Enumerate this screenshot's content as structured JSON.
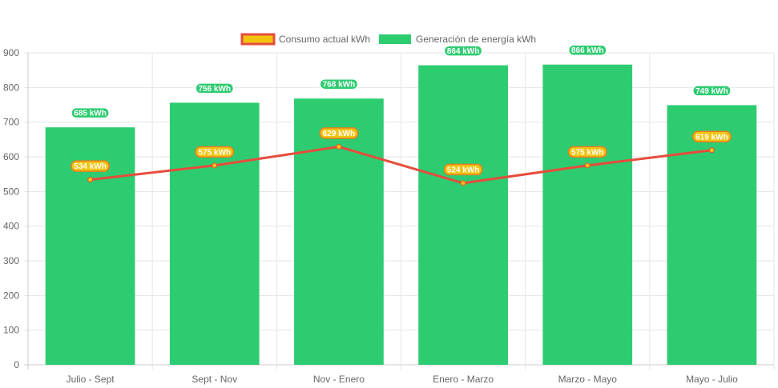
{
  "chart_data": {
    "type": "bar",
    "categories": [
      "Julio - Sept",
      "Sept - Nov",
      "Nov - Enero",
      "Enero - Marzo",
      "Marzo - Mayo",
      "Mayo - Julio"
    ],
    "series": [
      {
        "name": "Consumo actual kWh",
        "type": "line",
        "values": [
          534,
          575,
          629,
          524,
          575,
          619
        ],
        "labels": [
          "534 kWh",
          "575 kWh",
          "629 kWh",
          "524 kWh",
          "575 kWh",
          "619 kWh"
        ],
        "color": "#e74c3c",
        "fill": "#f1c40f"
      },
      {
        "name": "Generación de energía kWh",
        "type": "bar",
        "values": [
          685,
          756,
          768,
          864,
          866,
          749
        ],
        "labels": [
          "685 kWh",
          "756 kWh",
          "768 kWh",
          "864 kWh",
          "866 kWh",
          "749 kWh"
        ],
        "color": "#2ecc71"
      }
    ],
    "ylim": [
      0,
      900
    ],
    "yticks": [
      "0",
      "100",
      "200",
      "300",
      "400",
      "500",
      "600",
      "700",
      "800",
      "900"
    ],
    "grid": true,
    "legend": "top-center"
  }
}
